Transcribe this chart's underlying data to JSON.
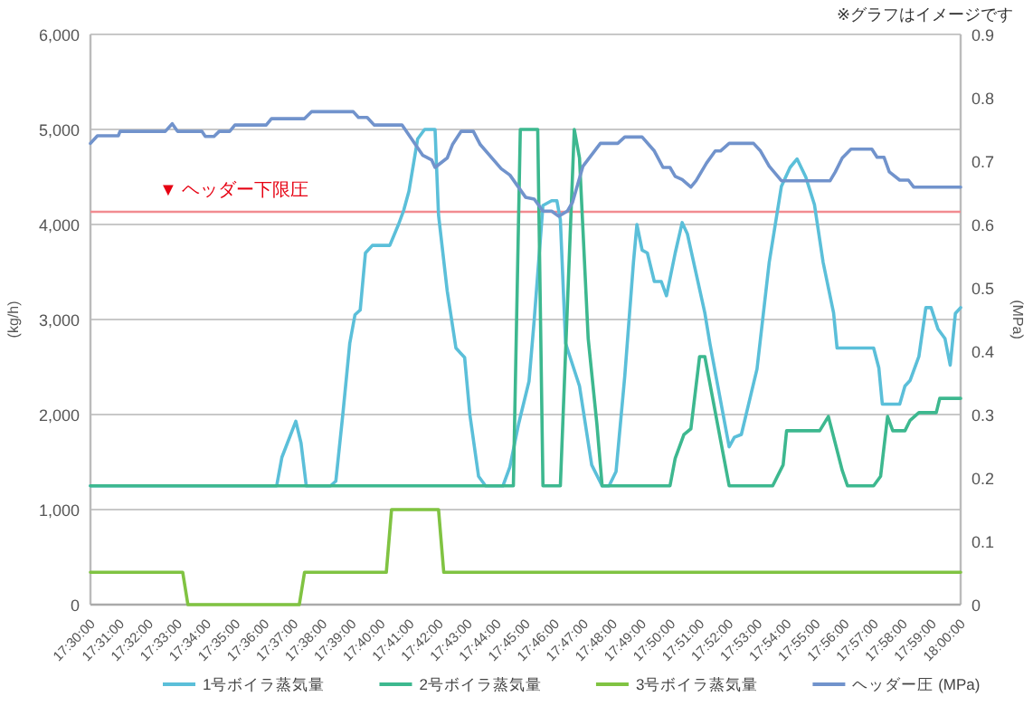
{
  "chart_data": {
    "type": "line",
    "ylabel": "(kg/h)",
    "y2label": "(MPa)",
    "annotations": [
      "※グラフはイメージです"
    ],
    "xlim": [
      17.5,
      18.0
    ],
    "xticks": [
      {
        "value": 17.5,
        "label": "17:30:00"
      },
      {
        "value": 17.516667,
        "label": "17:31:00"
      },
      {
        "value": 17.533333,
        "label": "17:32:00"
      },
      {
        "value": 17.55,
        "label": "17:33:00"
      },
      {
        "value": 17.566667,
        "label": "17:34:00"
      },
      {
        "value": 17.583333,
        "label": "17:35:00"
      },
      {
        "value": 17.6,
        "label": "17:36:00"
      },
      {
        "value": 17.616667,
        "label": "17:37:00"
      },
      {
        "value": 17.633333,
        "label": "17:38:00"
      },
      {
        "value": 17.65,
        "label": "17:39:00"
      },
      {
        "value": 17.666667,
        "label": "17:40:00"
      },
      {
        "value": 17.683333,
        "label": "17:41:00"
      },
      {
        "value": 17.7,
        "label": "17:42:00"
      },
      {
        "value": 17.716667,
        "label": "17:43:00"
      },
      {
        "value": 17.733333,
        "label": "17:44:00"
      },
      {
        "value": 17.75,
        "label": "17:45:00"
      },
      {
        "value": 17.766667,
        "label": "17:46:00"
      },
      {
        "value": 17.783333,
        "label": "17:47:00"
      },
      {
        "value": 17.8,
        "label": "17:48:00"
      },
      {
        "value": 17.816667,
        "label": "17:49:00"
      },
      {
        "value": 17.833333,
        "label": "17:50:00"
      },
      {
        "value": 17.85,
        "label": "17:51:00"
      },
      {
        "value": 17.866667,
        "label": "17:52:00"
      },
      {
        "value": 17.883333,
        "label": "17:53:00"
      },
      {
        "value": 17.9,
        "label": "17:54:00"
      },
      {
        "value": 17.916667,
        "label": "17:55:00"
      },
      {
        "value": 17.933333,
        "label": "17:56:00"
      },
      {
        "value": 17.95,
        "label": "17:57:00"
      },
      {
        "value": 17.966667,
        "label": "17:58:00"
      },
      {
        "value": 17.983333,
        "label": "17:59:00"
      },
      {
        "value": 18.0,
        "label": "18:00:00"
      }
    ],
    "ylim": [
      0,
      6000
    ],
    "yticks": [
      0,
      {
        "value": 1000,
        "label": "1,000"
      },
      {
        "value": 2000,
        "label": "2,000"
      },
      {
        "value": 3000,
        "label": "3,000"
      },
      {
        "value": 4000,
        "label": "4,000"
      },
      {
        "value": 5000,
        "label": "5,000"
      },
      {
        "value": 6000,
        "label": "6,000"
      }
    ],
    "y2lim": [
      0,
      0.9
    ],
    "y2ticks": [
      0,
      0.1,
      0.2,
      0.3,
      0.4,
      0.5,
      0.6,
      0.7,
      0.8,
      0.9
    ],
    "grid": "y",
    "legend": "bottom",
    "marker": "none",
    "line_style": "solid",
    "ref_lines": [
      {
        "axis": "y2",
        "value": 0.62,
        "label": "▼ ヘッダー下限圧",
        "color": "#f28b91"
      }
    ],
    "series": [
      {
        "name": "1号ボイラ蒸気量",
        "color": "#5bbfd9",
        "x": [
          17.5,
          17.607,
          17.61,
          17.618,
          17.621,
          17.624,
          17.638,
          17.641,
          17.645,
          17.649,
          17.652,
          17.655,
          17.658,
          17.662,
          17.672,
          17.677,
          17.68,
          17.683,
          17.688,
          17.692,
          17.698,
          17.7,
          17.705,
          17.71,
          17.715,
          17.718,
          17.723,
          17.727,
          17.737,
          17.741,
          17.746,
          17.752,
          17.755,
          17.76,
          17.765,
          17.768,
          17.77,
          17.773,
          17.781,
          17.788,
          17.794,
          17.798,
          17.802,
          17.807,
          17.812,
          17.814,
          17.817,
          17.82,
          17.824,
          17.828,
          17.831,
          17.836,
          17.84,
          17.843,
          17.853,
          17.856,
          17.867,
          17.87,
          17.874,
          17.883,
          17.89,
          17.897,
          17.902,
          17.906,
          17.911,
          17.916,
          17.921,
          17.927,
          17.929,
          17.95,
          17.953,
          17.955,
          17.965,
          17.968,
          17.971,
          17.976,
          17.98,
          17.983,
          17.987,
          17.991,
          17.994,
          17.997,
          18.0
        ],
        "values": [
          1250,
          1250,
          1550,
          1930,
          1700,
          1250,
          1250,
          1300,
          2000,
          2750,
          3050,
          3100,
          3700,
          3780,
          3780,
          4000,
          4150,
          4350,
          4900,
          5000,
          5000,
          4100,
          3300,
          2700,
          2600,
          2000,
          1350,
          1250,
          1250,
          1450,
          1900,
          2350,
          3000,
          4200,
          4250,
          4250,
          4050,
          2750,
          2300,
          1470,
          1250,
          1250,
          1400,
          2400,
          3600,
          4000,
          3730,
          3700,
          3400,
          3400,
          3250,
          3700,
          4020,
          3900,
          3070,
          2740,
          1660,
          1760,
          1790,
          2480,
          3600,
          4400,
          4600,
          4690,
          4500,
          4210,
          3600,
          3070,
          2700,
          2700,
          2490,
          2110,
          2110,
          2300,
          2360,
          2610,
          3125,
          3125,
          2900,
          2800,
          2520,
          3065,
          3125
        ]
      },
      {
        "name": "2号ボイラ蒸気量",
        "color": "#3db88f",
        "x": [
          17.5,
          17.743,
          17.747,
          17.757,
          17.76,
          17.77,
          17.778,
          17.781,
          17.786,
          17.791,
          17.794,
          17.833,
          17.836,
          17.841,
          17.845,
          17.85,
          17.853,
          17.867,
          17.892,
          17.898,
          17.9,
          17.919,
          17.924,
          17.932,
          17.935,
          17.95,
          17.954,
          17.958,
          17.961,
          17.968,
          17.971,
          17.976,
          17.986,
          17.988,
          18.0
        ],
        "values": [
          1250,
          1250,
          5000,
          5000,
          1250,
          1250,
          5000,
          4700,
          2800,
          1900,
          1250,
          1250,
          1540,
          1790,
          1850,
          2610,
          2610,
          1250,
          1250,
          1470,
          1830,
          1830,
          1980,
          1410,
          1250,
          1250,
          1350,
          1980,
          1830,
          1830,
          1940,
          2020,
          2020,
          2170,
          2170
        ]
      },
      {
        "name": "3号ボイラ蒸気量",
        "color": "#80c342",
        "x": [
          17.5,
          17.553,
          17.556,
          17.62,
          17.623,
          17.67,
          17.673,
          17.7,
          17.703,
          18.0
        ],
        "values": [
          340,
          340,
          0,
          0,
          340,
          340,
          1000,
          1000,
          340,
          340
        ]
      },
      {
        "name": "ヘッダー圧 (MPa)",
        "color": "#7193cc",
        "axis": "y2",
        "x": [
          17.5,
          17.504,
          17.516,
          17.517,
          17.543,
          17.547,
          17.55,
          17.564,
          17.566,
          17.571,
          17.574,
          17.58,
          17.583,
          17.601,
          17.604,
          17.623,
          17.627,
          17.651,
          17.654,
          17.659,
          17.663,
          17.679,
          17.684,
          17.691,
          17.696,
          17.698,
          17.705,
          17.708,
          17.713,
          17.72,
          17.724,
          17.736,
          17.741,
          17.75,
          17.755,
          17.76,
          17.765,
          17.769,
          17.774,
          17.777,
          17.783,
          17.793,
          17.803,
          17.807,
          17.817,
          17.824,
          17.829,
          17.833,
          17.836,
          17.84,
          17.845,
          17.848,
          17.854,
          17.859,
          17.862,
          17.867,
          17.881,
          17.885,
          17.89,
          17.897,
          17.925,
          17.928,
          17.932,
          17.937,
          17.949,
          17.952,
          17.956,
          17.959,
          17.965,
          17.97,
          17.973,
          18.0
        ],
        "values": [
          0.728,
          0.74,
          0.74,
          0.747,
          0.747,
          0.759,
          0.747,
          0.747,
          0.739,
          0.739,
          0.747,
          0.747,
          0.757,
          0.757,
          0.767,
          0.767,
          0.778,
          0.778,
          0.769,
          0.769,
          0.757,
          0.757,
          0.737,
          0.709,
          0.702,
          0.69,
          0.705,
          0.726,
          0.747,
          0.747,
          0.726,
          0.688,
          0.678,
          0.643,
          0.64,
          0.621,
          0.621,
          0.613,
          0.621,
          0.635,
          0.692,
          0.728,
          0.728,
          0.738,
          0.738,
          0.716,
          0.69,
          0.69,
          0.676,
          0.671,
          0.659,
          0.669,
          0.697,
          0.716,
          0.716,
          0.728,
          0.728,
          0.716,
          0.692,
          0.669,
          0.669,
          0.683,
          0.705,
          0.719,
          0.719,
          0.706,
          0.706,
          0.683,
          0.67,
          0.67,
          0.659,
          0.659
        ]
      }
    ]
  }
}
